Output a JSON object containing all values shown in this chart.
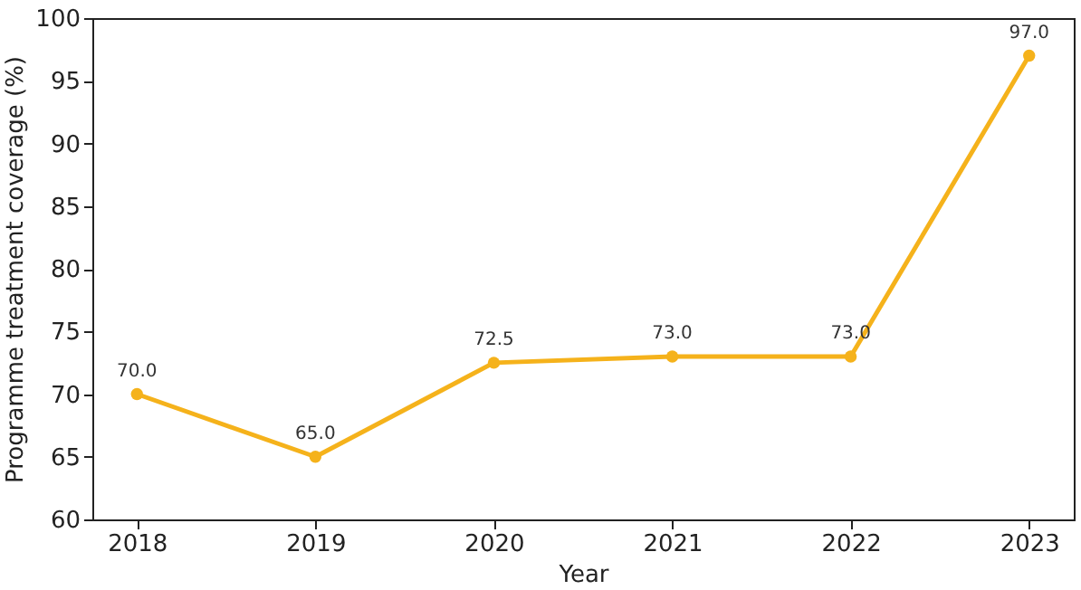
{
  "chart_data": {
    "type": "line",
    "xlabel": "Year",
    "ylabel": "Programme treatment coverage (%)",
    "x": [
      2018,
      2019,
      2020,
      2021,
      2022,
      2023
    ],
    "series": [
      {
        "color": "#f5b21b",
        "values": [
          70,
          65,
          72.5,
          73,
          73,
          97
        ],
        "value_labels": [
          "70.0",
          "65.0",
          "72.5",
          "73.0",
          "73.0",
          "97.0"
        ]
      }
    ],
    "xlim": [
      2017.75,
      2023.25
    ],
    "xticks": [
      2018,
      2019,
      2020,
      2021,
      2022,
      2023
    ],
    "ylim": [
      60,
      100
    ],
    "yticks": [
      60,
      65,
      70,
      75,
      80,
      85,
      90,
      95,
      100
    ],
    "grid": false,
    "legend": false,
    "marker": "circle",
    "line_style": "solid"
  }
}
